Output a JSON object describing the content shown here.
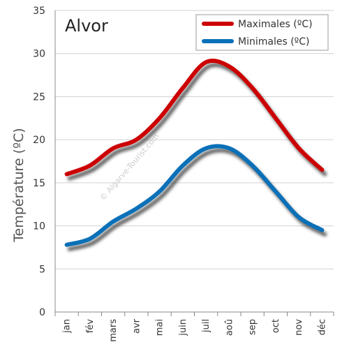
{
  "chart_data": {
    "type": "line",
    "title": "Alvor",
    "ylabel": "Température (ºC)",
    "xlabel": "",
    "ylim": [
      0,
      35
    ],
    "yticks": [
      0,
      5,
      10,
      15,
      20,
      25,
      30,
      35
    ],
    "categories": [
      "jan",
      "fév",
      "mars",
      "avr",
      "mai",
      "juin",
      "juil",
      "aoû",
      "sep",
      "oct",
      "nov",
      "déc"
    ],
    "series": [
      {
        "name": "Maximales (ºC)",
        "color": "#cc0000",
        "values": [
          16,
          17,
          19,
          20,
          22.5,
          26,
          29,
          28.5,
          26,
          22.5,
          19,
          16.5
        ]
      },
      {
        "name": "Minimales (ºC)",
        "color": "#0a70b8",
        "values": [
          7.8,
          8.5,
          10.5,
          12,
          14,
          17,
          19,
          19,
          17,
          14,
          11,
          9.5
        ]
      }
    ],
    "grid": "horizontal",
    "legend": "top-right",
    "watermark": "© Algarve-Tourist.com"
  }
}
